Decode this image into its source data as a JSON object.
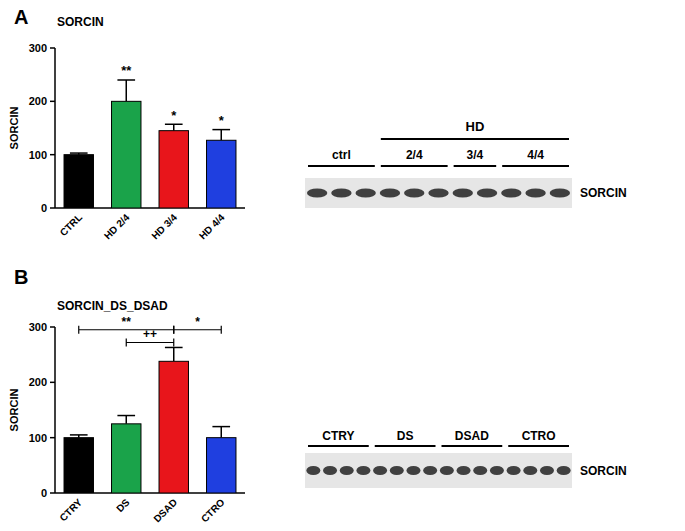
{
  "chart_data": [
    {
      "type": "bar",
      "title": "SORCIN",
      "y_label": "SORCIN",
      "categories": [
        "CTRL",
        "HD 2/4",
        "HD 3/4",
        "HD 4/4"
      ],
      "values": [
        100,
        200,
        145,
        127
      ],
      "errors": [
        3,
        40,
        12,
        20
      ],
      "colors": [
        "#000000",
        "#1aa34a",
        "#e8151b",
        "#1f3fe0"
      ],
      "ylim": [
        0,
        300
      ],
      "yticks": [
        0,
        100,
        200,
        300
      ],
      "annotations": [
        {
          "text": "**",
          "at": 1,
          "y": 250
        },
        {
          "text": "*",
          "at": 2,
          "y": 165
        },
        {
          "text": "*",
          "at": 3,
          "y": 155
        }
      ]
    },
    {
      "type": "bar",
      "title": "SORCIN_DS_DSAD",
      "y_label": "SORCIN",
      "categories": [
        "CTRY",
        "DS",
        "DSAD",
        "CTRO"
      ],
      "values": [
        100,
        125,
        238,
        100
      ],
      "errors": [
        5,
        15,
        25,
        20
      ],
      "colors": [
        "#000000",
        "#1aa34a",
        "#e8151b",
        "#1f3fe0"
      ],
      "ylim": [
        0,
        300
      ],
      "yticks": [
        0,
        100,
        200,
        300
      ],
      "annotations": [
        {
          "text": "**",
          "from": 0,
          "to": 2,
          "y": 295
        },
        {
          "text": "*",
          "from": 2,
          "to": 3,
          "y": 295
        },
        {
          "text": "++",
          "from": 1,
          "to": 2,
          "y": 272
        }
      ]
    }
  ],
  "panels": [
    "A",
    "B"
  ],
  "blots": [
    {
      "band": "SORCIN",
      "groups": [
        {
          "label": "ctrl",
          "lanes": 3
        },
        {
          "label": "2/4",
          "lanes": 3
        },
        {
          "label": "3/4",
          "lanes": 2
        },
        {
          "label": "4/4",
          "lanes": 3
        }
      ],
      "supergroups": [
        {
          "label": "HD",
          "from": 1,
          "to": 3
        }
      ]
    },
    {
      "band": "SORCIN",
      "groups": [
        {
          "label": "CTRY",
          "lanes": 4
        },
        {
          "label": "DS",
          "lanes": 4
        },
        {
          "label": "DSAD",
          "lanes": 4
        },
        {
          "label": "CTRO",
          "lanes": 4
        }
      ],
      "supergroups": []
    }
  ]
}
